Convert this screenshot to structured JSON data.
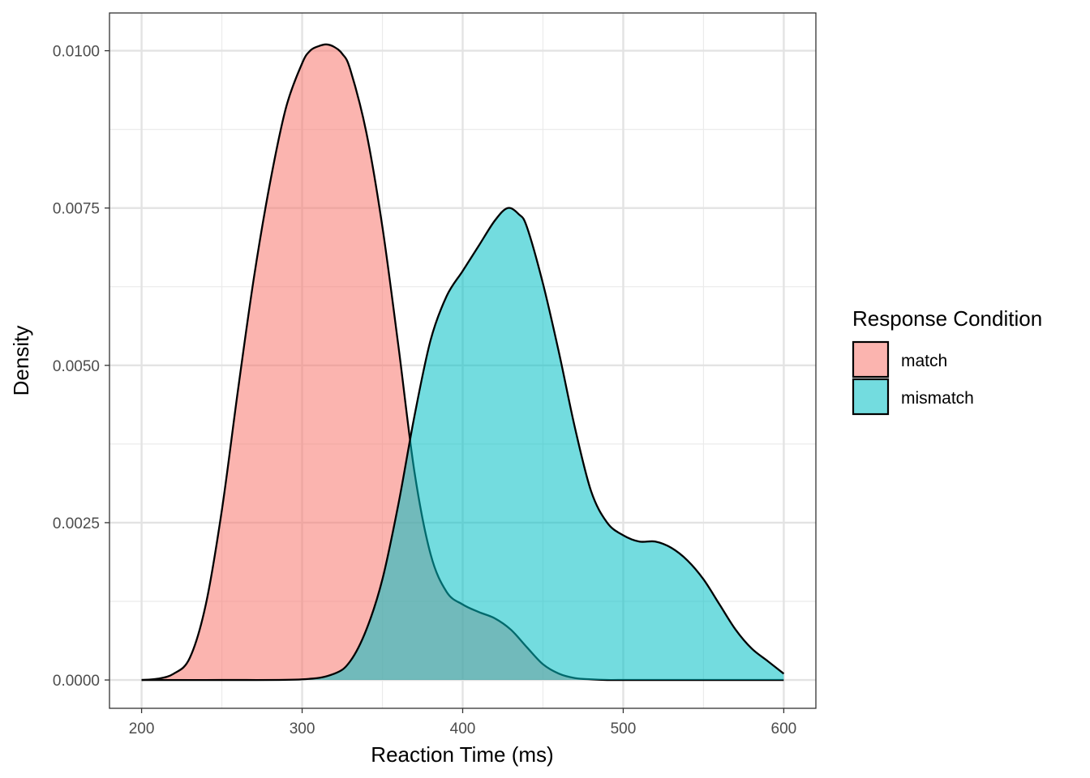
{
  "chart_data": {
    "type": "area",
    "subtype": "density",
    "xlabel": "Reaction Time (ms)",
    "ylabel": "Density",
    "xlim": [
      180,
      620
    ],
    "ylim": [
      -0.00045,
      0.0106
    ],
    "x_ticks": [
      200,
      300,
      400,
      500,
      600
    ],
    "x_tick_labels": [
      "200",
      "300",
      "400",
      "500",
      "600"
    ],
    "y_ticks": [
      0,
      0.0025,
      0.005,
      0.0075,
      0.01
    ],
    "y_tick_labels": [
      "0.0000",
      "0.0025",
      "0.0050",
      "0.0075",
      "0.0100"
    ],
    "grid": true,
    "legend": {
      "title": "Response Condition",
      "position": "right",
      "entries": [
        "match",
        "mismatch"
      ]
    },
    "series": [
      {
        "name": "match",
        "color": "#F8766D",
        "x": [
          200,
          210,
          220,
          230,
          240,
          250,
          260,
          270,
          280,
          290,
          300,
          305,
          310,
          315,
          320,
          325,
          330,
          340,
          350,
          360,
          370,
          380,
          390,
          400,
          410,
          420,
          430,
          440,
          450,
          460,
          470,
          480,
          490,
          500,
          550,
          600
        ],
        "y": [
          0.0,
          2e-05,
          0.0001,
          0.00035,
          0.0012,
          0.0027,
          0.0046,
          0.0064,
          0.0079,
          0.0091,
          0.0098,
          0.01,
          0.01007,
          0.0101,
          0.01006,
          0.00995,
          0.0097,
          0.0087,
          0.0072,
          0.0053,
          0.0033,
          0.002,
          0.0014,
          0.0012,
          0.00108,
          0.00098,
          0.0008,
          0.00052,
          0.00025,
          0.0001,
          3e-05,
          1e-05,
          0.0,
          0.0,
          0.0,
          0.0
        ]
      },
      {
        "name": "mismatch",
        "color": "#00BFC4",
        "x": [
          200,
          250,
          300,
          320,
          330,
          340,
          350,
          360,
          370,
          380,
          390,
          400,
          410,
          420,
          428,
          435,
          440,
          450,
          460,
          470,
          480,
          490,
          500,
          510,
          520,
          530,
          540,
          550,
          560,
          570,
          580,
          590,
          600
        ],
        "y": [
          0.0,
          0.0,
          1e-05,
          0.0001,
          0.0003,
          0.0008,
          0.0016,
          0.0028,
          0.0042,
          0.0054,
          0.0061,
          0.0065,
          0.0069,
          0.0073,
          0.0075,
          0.0074,
          0.0072,
          0.0063,
          0.0052,
          0.004,
          0.003,
          0.0025,
          0.0023,
          0.0022,
          0.0022,
          0.0021,
          0.0019,
          0.0016,
          0.0012,
          0.0008,
          0.0005,
          0.0003,
          0.0001
        ]
      }
    ]
  }
}
